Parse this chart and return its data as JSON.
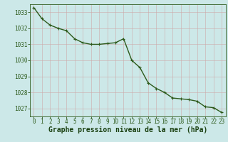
{
  "x": [
    0,
    1,
    2,
    3,
    4,
    5,
    6,
    7,
    8,
    9,
    10,
    11,
    12,
    13,
    14,
    15,
    16,
    17,
    18,
    19,
    20,
    21,
    22,
    23
  ],
  "y": [
    1033.3,
    1032.6,
    1032.2,
    1032.0,
    1031.85,
    1031.35,
    1031.1,
    1031.0,
    1031.0,
    1031.05,
    1031.1,
    1031.35,
    1030.0,
    1029.55,
    1028.6,
    1028.25,
    1028.0,
    1027.65,
    1027.6,
    1027.55,
    1027.45,
    1027.1,
    1027.05,
    1026.75
  ],
  "ylim": [
    1026.5,
    1033.5
  ],
  "yticks": [
    1027,
    1028,
    1029,
    1030,
    1031,
    1032,
    1033
  ],
  "xlim": [
    -0.5,
    23.5
  ],
  "xticks": [
    0,
    1,
    2,
    3,
    4,
    5,
    6,
    7,
    8,
    9,
    10,
    11,
    12,
    13,
    14,
    15,
    16,
    17,
    18,
    19,
    20,
    21,
    22,
    23
  ],
  "line_color": "#2d5a1b",
  "marker": "+",
  "marker_size": 3.5,
  "line_width": 1.0,
  "bg_color": "#cce8e8",
  "grid_color": "#aacccc",
  "xlabel": "Graphe pression niveau de la mer (hPa)",
  "tick_color": "#2d5a1b",
  "tick_fontsize": 5.5,
  "xlabel_fontsize": 7.0,
  "xlabel_color": "#1a4010"
}
